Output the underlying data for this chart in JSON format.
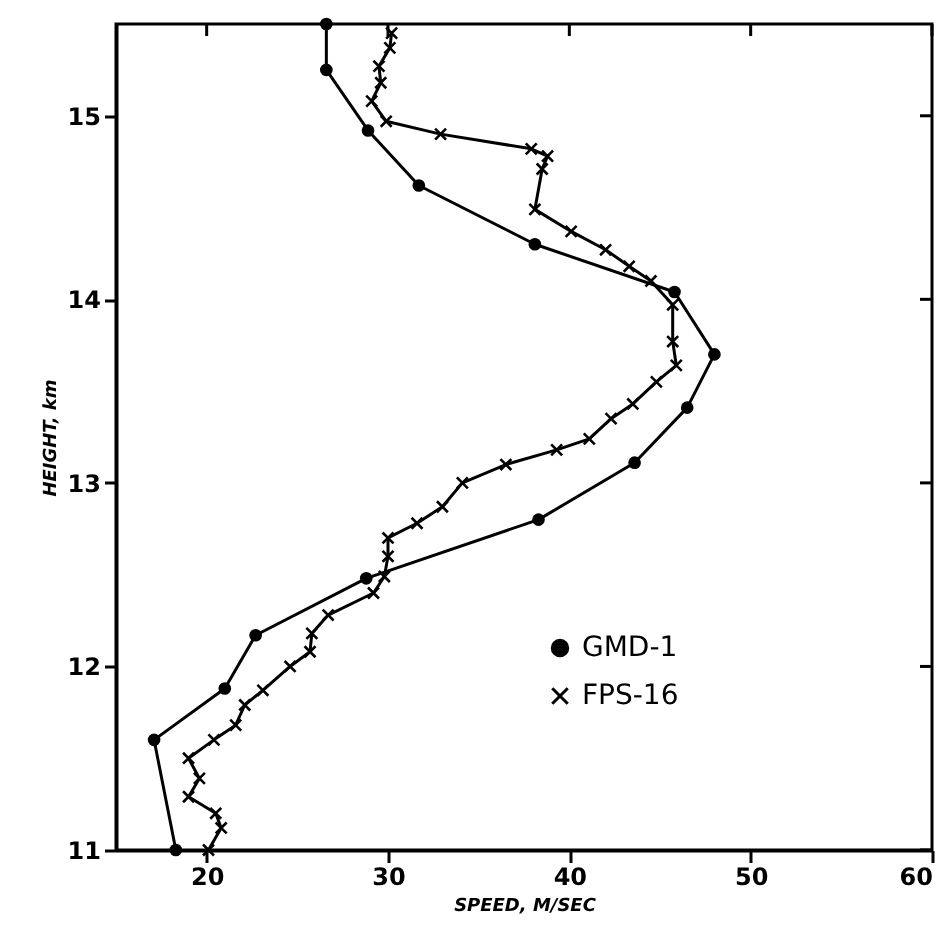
{
  "chart_data": {
    "type": "line",
    "xlabel": "SPEED, M/SEC",
    "ylabel": "HEIGHT, km",
    "xlim": [
      15,
      60
    ],
    "xticks": [
      20,
      30,
      40,
      50,
      60
    ],
    "ylim": [
      11,
      15.5
    ],
    "yticks": [
      11,
      12,
      13,
      14,
      15
    ],
    "grid": false,
    "legend": "bottom right",
    "line_style": "solid",
    "series": [
      {
        "name": "GMD-1",
        "color": "#000000",
        "marker": "circle",
        "x": [
          18.3,
          17.1,
          21.0,
          22.7,
          28.8,
          38.3,
          43.6,
          46.5,
          48.0,
          45.8,
          38.1,
          31.7,
          28.9,
          26.6,
          26.6
        ],
        "values": [
          11,
          11.6,
          11.88,
          12.17,
          12.48,
          12.8,
          13.11,
          13.41,
          13.7,
          14.04,
          14.3,
          14.62,
          14.92,
          15.25,
          15.5
        ]
      },
      {
        "name": "FPS-16",
        "color": "#000000",
        "marker": "cross",
        "x": [
          20.1,
          20.8,
          20.5,
          19.0,
          19.6,
          19.0,
          20.4,
          21.6,
          22.1,
          23.1,
          24.6,
          25.7,
          25.8,
          26.7,
          29.2,
          29.8,
          30.0,
          30.0,
          31.6,
          33.0,
          34.1,
          36.5,
          39.3,
          41.1,
          42.3,
          43.5,
          44.8,
          45.9,
          45.7,
          45.7,
          44.5,
          43.3,
          42.0,
          40.1,
          38.1,
          38.5,
          38.8,
          37.9,
          32.9,
          29.9,
          29.1,
          29.6,
          29.5,
          30.1,
          30.2
        ],
        "values": [
          11,
          11.12,
          11.2,
          11.29,
          11.39,
          11.5,
          11.6,
          11.68,
          11.79,
          11.87,
          12.0,
          12.08,
          12.18,
          12.28,
          12.4,
          12.49,
          12.6,
          12.7,
          12.78,
          12.87,
          13.0,
          13.1,
          13.18,
          13.24,
          13.35,
          13.43,
          13.55,
          13.64,
          13.77,
          13.97,
          14.1,
          14.18,
          14.27,
          14.37,
          14.49,
          14.71,
          14.78,
          14.82,
          14.9,
          14.97,
          15.08,
          15.18,
          15.27,
          15.37,
          15.45
        ]
      }
    ]
  }
}
